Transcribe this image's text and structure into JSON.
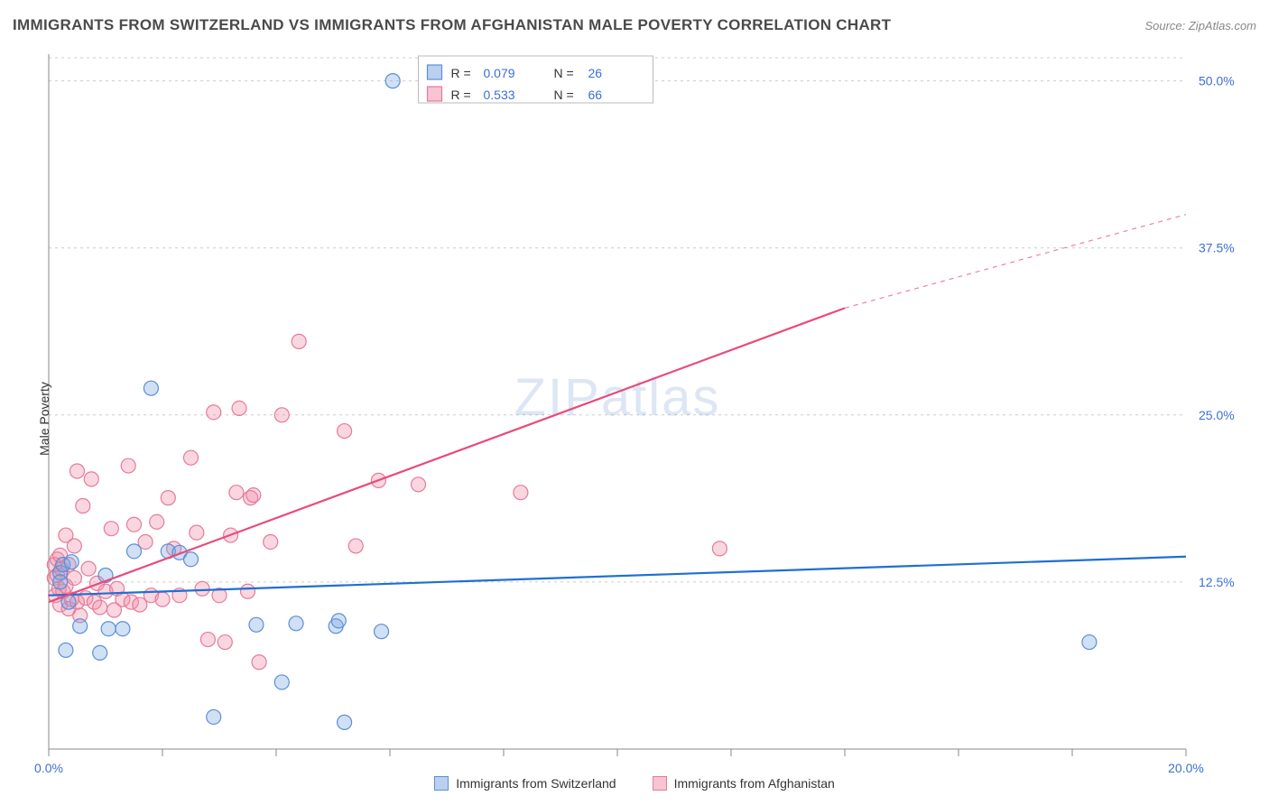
{
  "title": "IMMIGRANTS FROM SWITZERLAND VS IMMIGRANTS FROM AFGHANISTAN MALE POVERTY CORRELATION CHART",
  "source": "Source: ZipAtlas.com",
  "watermark": "ZIPatlas",
  "ylabel": "Male Poverty",
  "chart": {
    "type": "scatter-with-regression",
    "background_color": "#ffffff",
    "grid_color": "#cccccc",
    "axis_color": "#888888",
    "label_color": "#3b6fd6",
    "label_fontsize": 14,
    "xlim": [
      0,
      20
    ],
    "ylim": [
      0,
      52
    ],
    "x_ticks": [
      0,
      2,
      4,
      6,
      8,
      10,
      12,
      14,
      16,
      18,
      20
    ],
    "x_tick_labels": [
      "0.0%",
      "",
      "",
      "",
      "",
      "",
      "",
      "",
      "",
      "",
      "20.0%"
    ],
    "y_ticks": [
      12.5,
      25.0,
      37.5,
      50.0
    ],
    "y_tick_labels": [
      "12.5%",
      "25.0%",
      "37.5%",
      "50.0%"
    ],
    "marker_radius": 8,
    "series": [
      {
        "key": "switzerland",
        "label": "Immigrants from Switzerland",
        "color_fill": "rgba(120,165,225,0.35)",
        "color_stroke": "#5b8fd6",
        "legend_swatch_fill": "#b9d0ef",
        "legend_swatch_stroke": "#5b8fd6",
        "R": "0.079",
        "N": "26",
        "trend": {
          "y_at_x0": 11.5,
          "y_at_x20": 14.4,
          "color": "#1f6fd4"
        },
        "points": [
          [
            0.2,
            13.2
          ],
          [
            0.2,
            12.5
          ],
          [
            0.25,
            13.8
          ],
          [
            0.3,
            7.4
          ],
          [
            0.35,
            11.0
          ],
          [
            0.4,
            14.0
          ],
          [
            0.55,
            9.2
          ],
          [
            0.9,
            7.2
          ],
          [
            1.0,
            13.0
          ],
          [
            1.05,
            9.0
          ],
          [
            1.3,
            9.0
          ],
          [
            1.5,
            14.8
          ],
          [
            1.8,
            27.0
          ],
          [
            2.1,
            14.8
          ],
          [
            2.3,
            14.7
          ],
          [
            2.5,
            14.2
          ],
          [
            2.9,
            2.4
          ],
          [
            3.65,
            9.3
          ],
          [
            4.1,
            5.0
          ],
          [
            4.35,
            9.4
          ],
          [
            5.05,
            9.2
          ],
          [
            5.1,
            9.6
          ],
          [
            5.2,
            2.0
          ],
          [
            5.85,
            8.8
          ],
          [
            6.05,
            50.0
          ],
          [
            18.3,
            8.0
          ]
        ]
      },
      {
        "key": "afghanistan",
        "label": "Immigrants from Afghanistan",
        "color_fill": "rgba(240,140,165,0.35)",
        "color_stroke": "#e67a9a",
        "legend_swatch_fill": "#f6c4d2",
        "legend_swatch_stroke": "#e67a9a",
        "R": "0.533",
        "N": "66",
        "trend": {
          "y_at_x0": 11.0,
          "y_at_x14": 33.0,
          "y_at_x20": 40.0,
          "color": "#e94a7a",
          "dash_from_x": 14
        },
        "points": [
          [
            0.1,
            12.8
          ],
          [
            0.1,
            13.8
          ],
          [
            0.12,
            11.5
          ],
          [
            0.15,
            14.2
          ],
          [
            0.15,
            13.0
          ],
          [
            0.18,
            12.0
          ],
          [
            0.2,
            10.8
          ],
          [
            0.2,
            14.5
          ],
          [
            0.22,
            13.5
          ],
          [
            0.25,
            11.8
          ],
          [
            0.3,
            12.2
          ],
          [
            0.3,
            16.0
          ],
          [
            0.35,
            10.5
          ],
          [
            0.35,
            13.8
          ],
          [
            0.4,
            11.2
          ],
          [
            0.45,
            15.2
          ],
          [
            0.45,
            12.8
          ],
          [
            0.5,
            20.8
          ],
          [
            0.5,
            11.0
          ],
          [
            0.55,
            10.0
          ],
          [
            0.6,
            18.2
          ],
          [
            0.65,
            11.3
          ],
          [
            0.7,
            13.5
          ],
          [
            0.75,
            20.2
          ],
          [
            0.8,
            11.0
          ],
          [
            0.85,
            12.4
          ],
          [
            0.9,
            10.6
          ],
          [
            1.0,
            11.8
          ],
          [
            1.1,
            16.5
          ],
          [
            1.15,
            10.4
          ],
          [
            1.2,
            12.0
          ],
          [
            1.3,
            11.2
          ],
          [
            1.4,
            21.2
          ],
          [
            1.45,
            11.0
          ],
          [
            1.5,
            16.8
          ],
          [
            1.6,
            10.8
          ],
          [
            1.7,
            15.5
          ],
          [
            1.8,
            11.5
          ],
          [
            1.9,
            17.0
          ],
          [
            2.0,
            11.2
          ],
          [
            2.1,
            18.8
          ],
          [
            2.2,
            15.0
          ],
          [
            2.3,
            11.5
          ],
          [
            2.5,
            21.8
          ],
          [
            2.6,
            16.2
          ],
          [
            2.7,
            12.0
          ],
          [
            2.8,
            8.2
          ],
          [
            2.9,
            25.2
          ],
          [
            3.0,
            11.5
          ],
          [
            3.1,
            8.0
          ],
          [
            3.2,
            16.0
          ],
          [
            3.3,
            19.2
          ],
          [
            3.35,
            25.5
          ],
          [
            3.5,
            11.8
          ],
          [
            3.55,
            18.8
          ],
          [
            3.6,
            19.0
          ],
          [
            3.7,
            6.5
          ],
          [
            3.9,
            15.5
          ],
          [
            4.1,
            25.0
          ],
          [
            4.4,
            30.5
          ],
          [
            5.2,
            23.8
          ],
          [
            5.4,
            15.2
          ],
          [
            5.8,
            20.1
          ],
          [
            6.5,
            19.8
          ],
          [
            8.3,
            19.2
          ],
          [
            11.8,
            15.0
          ]
        ]
      }
    ]
  },
  "stats_legend": {
    "rows": [
      {
        "swatch_fill": "#b9d0ef",
        "swatch_stroke": "#5b8fd6",
        "R": "0.079",
        "N": "26"
      },
      {
        "swatch_fill": "#f6c4d2",
        "swatch_stroke": "#e67a9a",
        "R": "0.533",
        "N": "66"
      }
    ]
  }
}
